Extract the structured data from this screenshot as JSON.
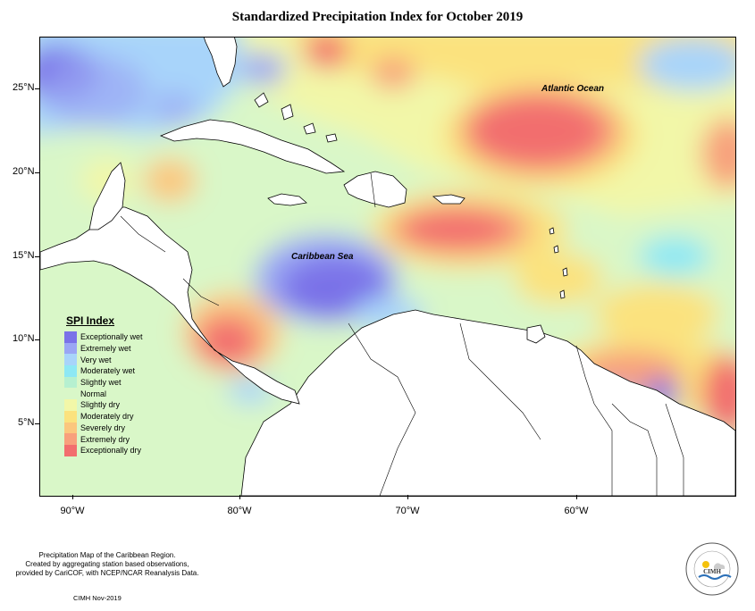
{
  "title": "Standardized Precipitation Index for October 2019",
  "map": {
    "region": "Caribbean",
    "labels": {
      "atlantic": "Atlantic Ocean",
      "caribbean": "Caribbean Sea"
    },
    "x_ticks": [
      "90°W",
      "80°W",
      "70°W",
      "60°W"
    ],
    "y_ticks": [
      "25°N",
      "20°N",
      "15°N",
      "10°N",
      "5°N"
    ]
  },
  "legend": {
    "title": "SPI Index",
    "items": [
      {
        "label": "Exceptionally wet",
        "color": "#7a72e8"
      },
      {
        "label": "Extremely wet",
        "color": "#9aa6f4"
      },
      {
        "label": "Very wet",
        "color": "#a8d4fa"
      },
      {
        "label": "Moderately wet",
        "color": "#8ee8f4"
      },
      {
        "label": "Slightly wet",
        "color": "#b6f0d0"
      },
      {
        "label": "Normal",
        "color": "#d9f7c8"
      },
      {
        "label": "Slightly dry",
        "color": "#f2f7a8"
      },
      {
        "label": "Moderately dry",
        "color": "#fbe27e"
      },
      {
        "label": "Severely dry",
        "color": "#fbc77e"
      },
      {
        "label": "Extremely dry",
        "color": "#f8a07c"
      },
      {
        "label": "Exceptionally dry",
        "color": "#f26e6e"
      }
    ]
  },
  "footer": {
    "line1": "Precipitation Map of the Caribbean Region.",
    "line2": "Created by aggregating station based observations,",
    "line3": "provided by CariCOF, with NCEP/NCAR Reanalysis Data.",
    "credit": "CIMH Nov-2019"
  },
  "logo": {
    "text": "CIMH"
  }
}
